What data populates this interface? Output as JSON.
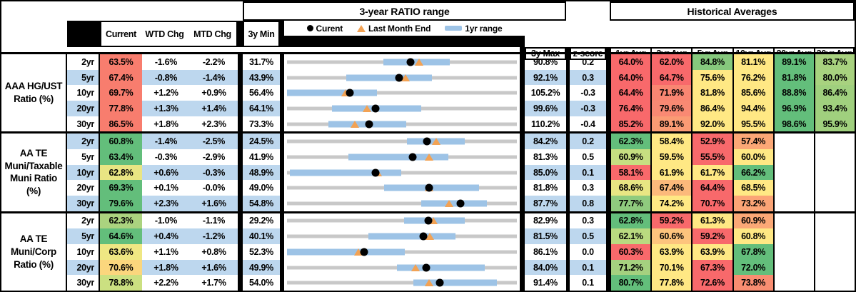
{
  "header": {
    "range_title": "3-year RATIO range",
    "averages_title": "Historical Averages",
    "columns": {
      "current": "Current",
      "wtd": "WTD Chg",
      "mtd": "MTD Chg",
      "min3y": "3y Min",
      "max3y": "3y Max",
      "zscore": "z-score"
    },
    "avg_columns": [
      "1yr Avg",
      "3yr Avg",
      "5yr Avg",
      "10yr Avg",
      "20yr Avg",
      "30yr Avg"
    ],
    "legend": {
      "current": "Curent",
      "last_month_end": "Last Month End",
      "range_1yr": "1yr range"
    }
  },
  "colors": {
    "row_stripe": "#BDD7EE",
    "range_line": "#C8C8C8",
    "range_1yr_bar": "#9DC3E6",
    "current_dot": "#000000",
    "last_month_end_triangle": "#F2A254",
    "scale_red": "#F8696B",
    "scale_yellow": "#FFE884",
    "scale_green": "#63BE7B"
  },
  "chart_data": {
    "type": "table",
    "description": "Municipal ratio monitor: current ratio vs 3-year range (dot = current, triangle = last month end, bar = 1yr range) plus historical averages, all in %",
    "avg_columns": [
      "1yr Avg",
      "3yr Avg",
      "5yr Avg",
      "10yr Avg",
      "20yr Avg",
      "30yr Avg"
    ],
    "groups": [
      {
        "label": "AAA HG/UST\nRatio (%)",
        "rows": [
          {
            "tenor": "2yr",
            "current": 63.5,
            "current_bg": "#F87D6E",
            "wtd": "-1.6%",
            "mtd": "-2.2%",
            "min": 31.7,
            "max": 90.8,
            "z": "0.2",
            "last_month_end": 65.7,
            "range_1yr": [
              56.4,
              73.6
            ],
            "avgs": [
              64.0,
              62.0,
              84.8,
              81.1,
              89.1,
              83.7
            ],
            "avg_bg": [
              "#F8696B",
              "#F8696B",
              "#86C87D",
              "#FFE884",
              "#63BE7B",
              "#A8D27F"
            ]
          },
          {
            "tenor": "5yr",
            "current": 67.4,
            "current_bg": "#F87D6E",
            "wtd": "-0.8%",
            "mtd": "-1.4%",
            "min": 43.9,
            "max": 92.1,
            "z": "0.3",
            "last_month_end": 68.8,
            "range_1yr": [
              56.3,
              74.3
            ],
            "avgs": [
              64.0,
              64.7,
              75.6,
              76.2,
              81.8,
              80.0
            ],
            "avg_bg": [
              "#F8696B",
              "#F8696B",
              "#FFE884",
              "#FFE884",
              "#63BE7B",
              "#A8D27F"
            ]
          },
          {
            "tenor": "10yr",
            "current": 69.7,
            "current_bg": "#F87D6E",
            "wtd": "+1.2%",
            "mtd": "+0.9%",
            "min": 56.4,
            "max": 105.2,
            "z": "-0.3",
            "last_month_end": 68.8,
            "range_1yr": [
              56.4,
              75.5
            ],
            "avgs": [
              64.4,
              71.9,
              81.8,
              85.6,
              88.8,
              86.4
            ],
            "avg_bg": [
              "#F8696B",
              "#F98672",
              "#FFE884",
              "#FFE884",
              "#63BE7B",
              "#A0D07E"
            ]
          },
          {
            "tenor": "20yr",
            "current": 77.8,
            "current_bg": "#F87D6E",
            "wtd": "+1.3%",
            "mtd": "+1.4%",
            "min": 64.1,
            "max": 99.6,
            "z": "-0.3",
            "last_month_end": 76.4,
            "range_1yr": [
              71.1,
              84.8
            ],
            "avgs": [
              76.4,
              79.6,
              86.4,
              94.4,
              96.9,
              93.4
            ],
            "avg_bg": [
              "#F8696B",
              "#F98973",
              "#FFE884",
              "#FFE884",
              "#63BE7B",
              "#A0D07E"
            ]
          },
          {
            "tenor": "30yr",
            "current": 86.5,
            "current_bg": "#F87D6E",
            "wtd": "+1.8%",
            "mtd": "+2.3%",
            "min": 73.3,
            "max": 110.2,
            "z": "-0.4",
            "last_month_end": 84.2,
            "range_1yr": [
              80.0,
              92.4
            ],
            "avgs": [
              85.2,
              89.1,
              92.0,
              95.5,
              98.6,
              95.9
            ],
            "avg_bg": [
              "#F8696B",
              "#FA9B74",
              "#FFE884",
              "#FFE884",
              "#63BE7B",
              "#A0D07E"
            ]
          }
        ]
      },
      {
        "label": "AA TE\nMuni/Taxable\nMuni Ratio\n(%)",
        "rows": [
          {
            "tenor": "2yr",
            "current": 60.8,
            "current_bg": "#63BE7B",
            "wtd": "-1.4%",
            "mtd": "-2.5%",
            "min": 24.5,
            "max": 84.2,
            "z": "0.2",
            "last_month_end": 63.3,
            "range_1yr": [
              55.6,
              70.6
            ],
            "avgs": [
              62.3,
              58.4,
              52.9,
              57.4,
              null,
              null
            ],
            "avg_bg": [
              "#63BE7B",
              "#FFE884",
              "#F8696B",
              "#FBA776",
              null,
              null
            ]
          },
          {
            "tenor": "5yr",
            "current": 63.4,
            "current_bg": "#63BE7B",
            "wtd": "-0.3%",
            "mtd": "-2.9%",
            "min": 41.9,
            "max": 81.3,
            "z": "0.5",
            "last_month_end": 66.3,
            "range_1yr": [
              52.4,
              69.6
            ],
            "avgs": [
              60.9,
              59.5,
              55.5,
              60.0,
              null,
              null
            ],
            "avg_bg": [
              "#C6DE81",
              "#FFE884",
              "#F8696B",
              "#FFE884",
              null,
              null
            ]
          },
          {
            "tenor": "10yr",
            "current": 62.8,
            "current_bg": "#E9E583",
            "wtd": "+0.6%",
            "mtd": "-0.3%",
            "min": 48.9,
            "max": 85.0,
            "z": "0.1",
            "last_month_end": 63.1,
            "range_1yr": [
              49.4,
              66.8
            ],
            "avgs": [
              58.1,
              61.9,
              61.7,
              66.2,
              null,
              null
            ],
            "avg_bg": [
              "#F8696B",
              "#FFE884",
              "#FFE884",
              "#63BE7B",
              null,
              null
            ]
          },
          {
            "tenor": "20yr",
            "current": 69.3,
            "current_bg": "#63BE7B",
            "wtd": "+0.1%",
            "mtd": "-0.0%",
            "min": 49.0,
            "max": 81.8,
            "z": "0.3",
            "last_month_end": 69.3,
            "range_1yr": [
              62.9,
              76.4
            ],
            "avgs": [
              68.6,
              67.4,
              64.4,
              68.5,
              null,
              null
            ],
            "avg_bg": [
              "#E8E683",
              "#FCB97B",
              "#F8696B",
              "#FFE884",
              null,
              null
            ]
          },
          {
            "tenor": "30yr",
            "current": 79.6,
            "current_bg": "#63BE7B",
            "wtd": "+2.3%",
            "mtd": "+1.6%",
            "min": 54.8,
            "max": 87.7,
            "z": "0.8",
            "last_month_end": 78.0,
            "range_1yr": [
              74.0,
              83.4
            ],
            "avgs": [
              77.7,
              74.2,
              70.7,
              73.2,
              null,
              null
            ],
            "avg_bg": [
              "#8FCB7E",
              "#FFE884",
              "#F8696B",
              "#FBA476",
              null,
              null
            ]
          }
        ]
      },
      {
        "label": "AA TE\nMuni/Corp\nRatio (%)",
        "rows": [
          {
            "tenor": "2yr",
            "current": 62.3,
            "current_bg": "#ABD37F",
            "wtd": "-1.0%",
            "mtd": "-1.1%",
            "min": 29.2,
            "max": 82.9,
            "z": "0.3",
            "last_month_end": 63.4,
            "range_1yr": [
              56.5,
              70.7
            ],
            "avgs": [
              62.8,
              59.2,
              61.3,
              60.9,
              null,
              null
            ],
            "avg_bg": [
              "#63BE7B",
              "#F8696B",
              "#FFE884",
              "#FBA876",
              null,
              null
            ]
          },
          {
            "tenor": "5yr",
            "current": 64.6,
            "current_bg": "#63BE7B",
            "wtd": "+0.4%",
            "mtd": "-1.2%",
            "min": 40.1,
            "max": 81.5,
            "z": "0.5",
            "last_month_end": 65.8,
            "range_1yr": [
              54.7,
              70.5
            ],
            "avgs": [
              62.1,
              60.6,
              59.2,
              60.8,
              null,
              null
            ],
            "avg_bg": [
              "#B9DA80",
              "#FDC47D",
              "#F8696B",
              "#FFE884",
              null,
              null
            ]
          },
          {
            "tenor": "10yr",
            "current": 63.6,
            "current_bg": "#EFE783",
            "wtd": "+1.1%",
            "mtd": "+0.8%",
            "min": 52.3,
            "max": 86.1,
            "z": "0.0",
            "last_month_end": 62.8,
            "range_1yr": [
              52.3,
              69.6
            ],
            "avgs": [
              60.3,
              63.9,
              63.9,
              67.8,
              null,
              null
            ],
            "avg_bg": [
              "#F8696B",
              "#FFE884",
              "#FFE884",
              "#63BE7B",
              null,
              null
            ]
          },
          {
            "tenor": "20yr",
            "current": 70.6,
            "current_bg": "#FBD67D",
            "wtd": "+1.8%",
            "mtd": "+1.6%",
            "min": 49.9,
            "max": 84.0,
            "z": "0.1",
            "last_month_end": 69.0,
            "range_1yr": [
              66.2,
              79.2
            ],
            "avgs": [
              71.2,
              70.1,
              67.3,
              72.0,
              null,
              null
            ],
            "avg_bg": [
              "#A5D17F",
              "#FFE884",
              "#F8696B",
              "#63BE7B",
              null,
              null
            ]
          },
          {
            "tenor": "30yr",
            "current": 78.8,
            "current_bg": "#CBE081",
            "wtd": "+2.2%",
            "mtd": "+1.7%",
            "min": 54.0,
            "max": 91.4,
            "z": "0.1",
            "last_month_end": 77.1,
            "range_1yr": [
              74.6,
              88.2
            ],
            "avgs": [
              80.7,
              77.8,
              72.6,
              73.8,
              null,
              null
            ],
            "avg_bg": [
              "#63BE7B",
              "#FFE884",
              "#F8696B",
              "#F98D71",
              null,
              null
            ]
          }
        ]
      }
    ]
  }
}
